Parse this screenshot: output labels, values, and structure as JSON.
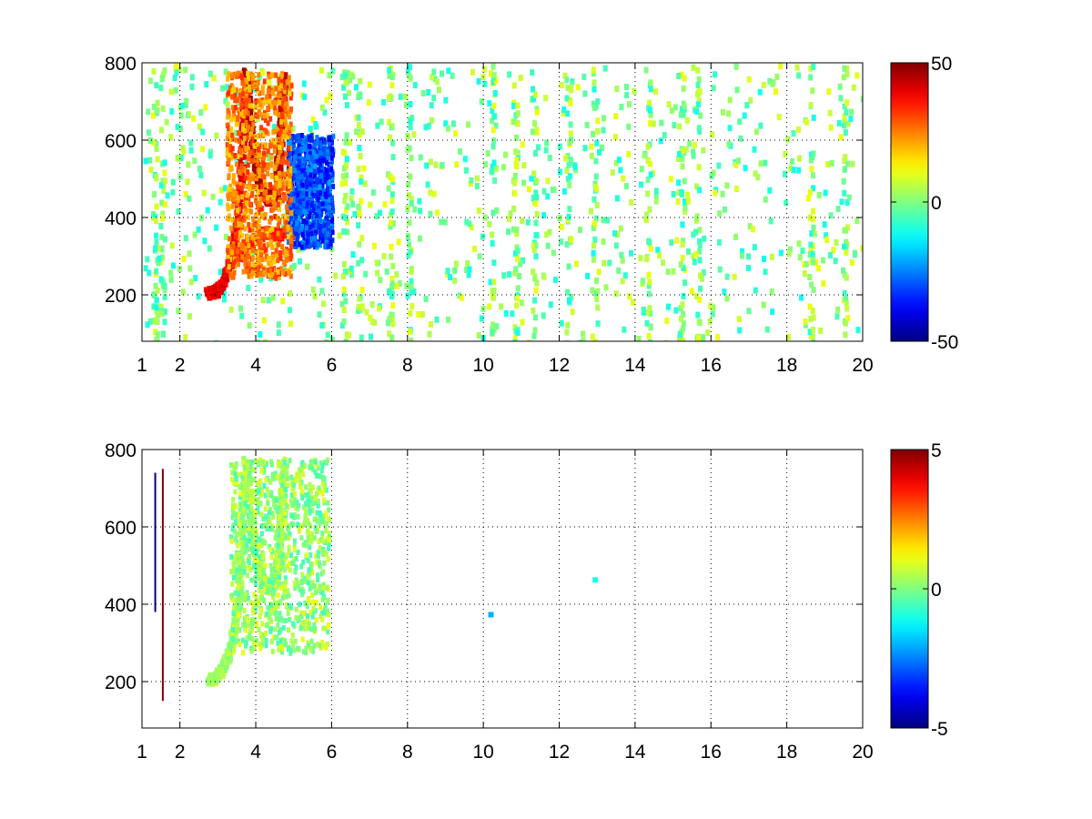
{
  "chart_data": [
    {
      "type": "heatmap",
      "title": "",
      "xlabel": "",
      "ylabel": "",
      "xlim": [
        1,
        20
      ],
      "ylim": [
        80,
        800
      ],
      "xticks": [
        1,
        2,
        4,
        6,
        8,
        10,
        12,
        14,
        16,
        18,
        20
      ],
      "xtick_labels": [
        "1",
        "2",
        "4",
        "6",
        "8",
        "10",
        "12",
        "14",
        "16",
        "18",
        "20"
      ],
      "yticks": [
        200,
        400,
        600,
        800
      ],
      "ytick_labels": [
        "200",
        "400",
        "600",
        "800"
      ],
      "grid": true,
      "colormap": "jet",
      "clim": [
        -50,
        50
      ],
      "colorbar_ticks": [
        50,
        0,
        -50
      ],
      "colorbar_labels": [
        "50",
        "0",
        "-50"
      ],
      "features": [
        {
          "kind": "curve",
          "desc": "high positive band",
          "value": 40,
          "x": [
            2.7,
            2.9,
            3.1,
            3.3,
            3.5,
            3.6,
            3.7
          ],
          "y": [
            210,
            215,
            240,
            300,
            420,
            600,
            780
          ]
        },
        {
          "kind": "curve",
          "desc": "positive u-shape",
          "value": 45,
          "x": [
            3.7,
            3.9,
            4.1,
            4.3,
            4.5,
            4.6,
            4.7
          ],
          "y": [
            780,
            560,
            470,
            450,
            480,
            600,
            780
          ]
        },
        {
          "kind": "curve",
          "desc": "positive lower branch",
          "value": 35,
          "x": [
            3.4,
            3.8,
            4.2,
            4.6,
            5.0
          ],
          "y": [
            300,
            340,
            370,
            360,
            370
          ]
        },
        {
          "kind": "blob",
          "desc": "negative region",
          "value": -30,
          "x": [
            4.8,
            6.0
          ],
          "y": [
            330,
            620
          ]
        },
        {
          "kind": "blob",
          "desc": "positive fill",
          "value": 25,
          "x": [
            3.2,
            4.9
          ],
          "y": [
            250,
            780
          ]
        }
      ],
      "noise_columns_x": [
        1.3,
        1.5,
        6.3,
        6.7,
        7.5,
        8.0,
        10.2,
        10.8,
        11.3,
        12.2,
        12.9,
        14.3,
        15.2,
        15.6,
        18.6,
        19.5
      ]
    },
    {
      "type": "heatmap",
      "title": "",
      "xlabel": "",
      "ylabel": "",
      "xlim": [
        1,
        20
      ],
      "ylim": [
        80,
        800
      ],
      "xticks": [
        1,
        2,
        4,
        6,
        8,
        10,
        12,
        14,
        16,
        18,
        20
      ],
      "xtick_labels": [
        "1",
        "2",
        "4",
        "6",
        "8",
        "10",
        "12",
        "14",
        "16",
        "18",
        "20"
      ],
      "yticks": [
        200,
        400,
        600,
        800
      ],
      "ytick_labels": [
        "200",
        "400",
        "600",
        "800"
      ],
      "grid": true,
      "colormap": "jet",
      "clim": [
        -5,
        5
      ],
      "colorbar_ticks": [
        5,
        0,
        -5
      ],
      "colorbar_labels": [
        "5",
        "0",
        "-5"
      ],
      "features": [
        {
          "kind": "curve",
          "desc": "near-zero band",
          "value": 0.3,
          "x": [
            2.7,
            2.9,
            3.1,
            3.3,
            3.5,
            3.6,
            3.7
          ],
          "y": [
            210,
            215,
            240,
            300,
            420,
            600,
            780
          ]
        },
        {
          "kind": "curve",
          "desc": "near-zero u-shape",
          "value": 0.4,
          "x": [
            3.7,
            3.9,
            4.1,
            4.3,
            4.5,
            4.6,
            4.7
          ],
          "y": [
            780,
            560,
            470,
            450,
            480,
            600,
            780
          ]
        },
        {
          "kind": "blob",
          "desc": "near-zero fill",
          "value": 0.2,
          "x": [
            3.3,
            5.9
          ],
          "y": [
            280,
            780
          ]
        },
        {
          "kind": "line",
          "desc": "dark red streak",
          "value": 5,
          "x": [
            1.55,
            1.55
          ],
          "y": [
            150,
            750
          ]
        },
        {
          "kind": "line",
          "desc": "dark blue streak",
          "value": -5,
          "x": [
            1.35,
            1.35
          ],
          "y": [
            380,
            740
          ]
        },
        {
          "kind": "point",
          "value": -2,
          "x": [
            10.2,
            10.2
          ],
          "y": [
            375,
            380
          ]
        },
        {
          "kind": "point",
          "value": -1,
          "x": [
            12.95,
            12.95
          ],
          "y": [
            460,
            470
          ]
        }
      ]
    }
  ]
}
